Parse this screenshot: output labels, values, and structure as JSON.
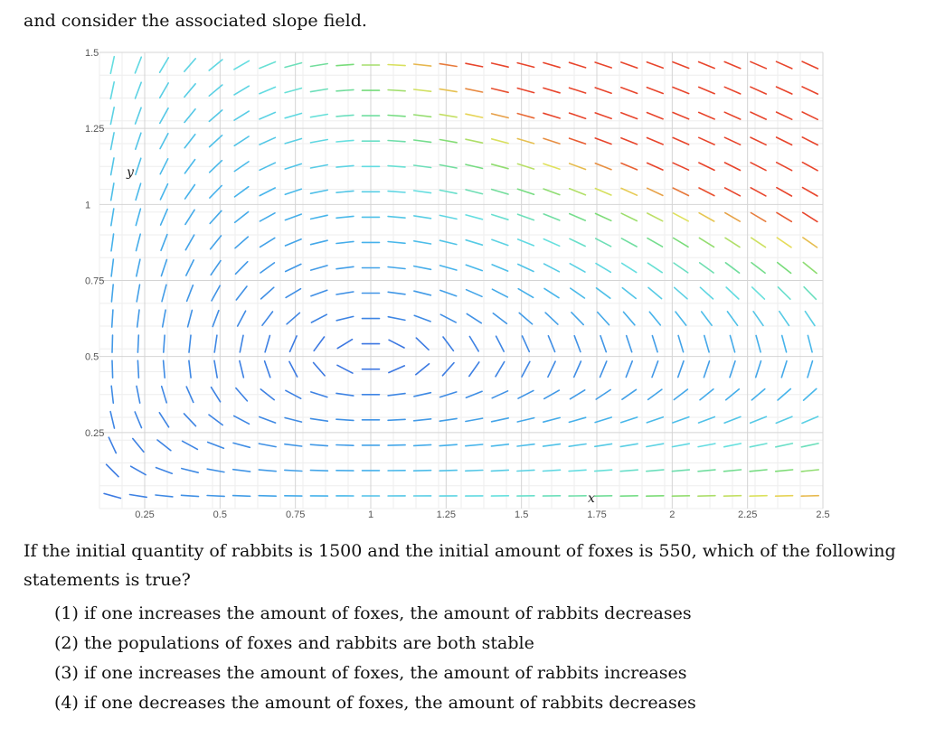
{
  "intro_text": "and consider the associated slope field.",
  "chart_data": {
    "type": "slope_field",
    "x_variable": "x",
    "y_variable": "y",
    "xlim": [
      0.1,
      2.5
    ],
    "ylim": [
      0.0,
      1.5
    ],
    "x_ticks": [
      0.25,
      0.5,
      0.75,
      1,
      1.25,
      1.5,
      1.75,
      2,
      2.25,
      2.5
    ],
    "x_tick_labels": [
      "0.25",
      "0.5",
      "0.75",
      "1",
      "1.25",
      "1.5",
      "1.75",
      "2",
      "2.25",
      "2.5"
    ],
    "y_ticks": [
      0.25,
      0.5,
      0.75,
      1,
      1.25,
      1.5
    ],
    "y_tick_labels": [
      "0.25",
      "0.5",
      "0.75",
      "1",
      "1.25",
      "1.5"
    ],
    "equilibrium": [
      1,
      0.5
    ],
    "grid": true,
    "colors": {
      "low": "#3b6fe0",
      "mid": "#66e0e0",
      "high": "#e8452c"
    }
  },
  "question_text": "If the initial quantity of rabbits is 1500 and the initial amount of foxes is 550, which of the following statements is true?",
  "options": [
    {
      "number": "(1)",
      "text": "if one increases the amount of foxes, the amount of rabbits decreases"
    },
    {
      "number": "(2)",
      "text": "the populations of foxes and rabbits are both stable"
    },
    {
      "number": "(3)",
      "text": "if one increases the amount of foxes, the amount of rabbits increases"
    },
    {
      "number": "(4)",
      "text": "if one decreases the amount of foxes, the amount of rabbits decreases"
    }
  ]
}
